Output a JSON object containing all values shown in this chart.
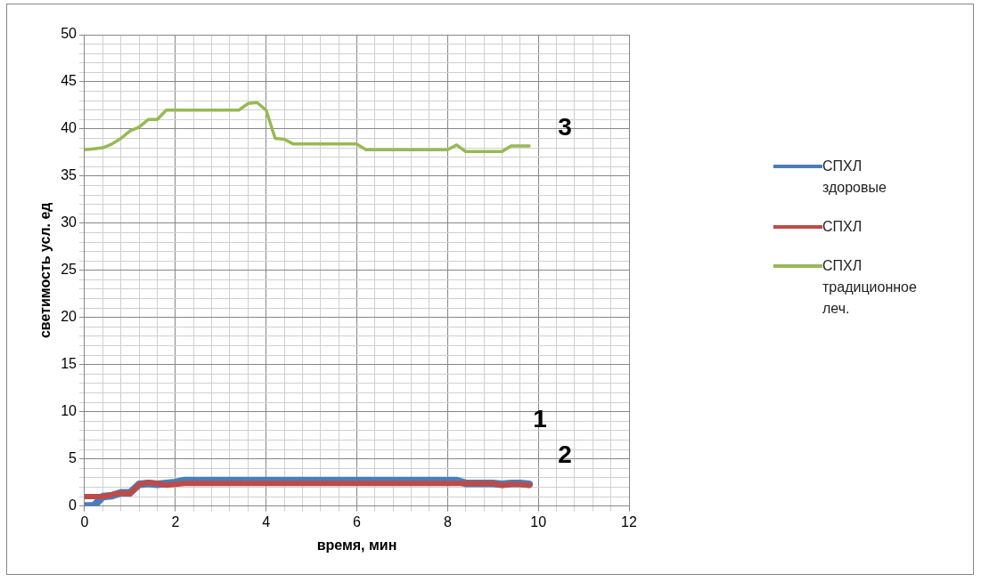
{
  "chart_data": {
    "type": "line",
    "xlabel": "время, мин",
    "ylabel": "светимость усл. ед",
    "legend": "right",
    "grid": true,
    "marker": "none",
    "x": [
      0,
      0.2,
      0.4,
      0.6,
      0.8,
      1,
      1.2,
      1.4,
      1.6,
      1.8,
      2,
      2.2,
      2.4,
      2.6,
      2.8,
      3,
      3.2,
      3.4,
      3.6,
      3.8,
      4,
      4.2,
      4.4,
      4.6,
      4.8,
      5,
      5.2,
      5.4,
      5.6,
      5.8,
      6,
      6.2,
      6.4,
      6.6,
      6.8,
      7,
      7.2,
      7.4,
      7.6,
      7.8,
      8,
      8.2,
      8.4,
      8.6,
      8.8,
      9,
      9.2,
      9.4,
      9.6,
      9.8
    ],
    "series": [
      {
        "name": "СПХЛ здоровые",
        "color": "#4a7ebb",
        "values": [
          0,
          0,
          1,
          1.1,
          1.4,
          1.4,
          2.3,
          2.4,
          2.3,
          2.4,
          2.5,
          2.7,
          2.7,
          2.7,
          2.7,
          2.7,
          2.7,
          2.7,
          2.7,
          2.7,
          2.7,
          2.7,
          2.7,
          2.7,
          2.7,
          2.7,
          2.7,
          2.7,
          2.7,
          2.7,
          2.7,
          2.7,
          2.7,
          2.7,
          2.7,
          2.7,
          2.7,
          2.7,
          2.7,
          2.7,
          2.7,
          2.7,
          2.4,
          2.4,
          2.4,
          2.4,
          2.3,
          2.4,
          2.4,
          2.3
        ]
      },
      {
        "name": "СПХЛ",
        "color": "#be4b48",
        "values": [
          1,
          1,
          1,
          1.2,
          1.4,
          1.3,
          2.3,
          2.5,
          2.4,
          2.2,
          2.3,
          2.4,
          2.4,
          2.4,
          2.4,
          2.4,
          2.4,
          2.4,
          2.4,
          2.4,
          2.4,
          2.4,
          2.4,
          2.4,
          2.4,
          2.4,
          2.4,
          2.4,
          2.4,
          2.4,
          2.4,
          2.4,
          2.4,
          2.4,
          2.4,
          2.4,
          2.4,
          2.4,
          2.4,
          2.4,
          2.4,
          2.4,
          2.4,
          2.4,
          2.4,
          2.4,
          2.2,
          2.3,
          2.3,
          2.2
        ]
      },
      {
        "name": "СПХЛ традиционное леч.",
        "color": "#98b954",
        "values": [
          37.8,
          37.9,
          38,
          38.4,
          39,
          39.8,
          40.2,
          41,
          41,
          42,
          42,
          42,
          42,
          42,
          42,
          42,
          42,
          42,
          42.7,
          42.8,
          42,
          39,
          38.9,
          38.4,
          38.4,
          38.4,
          38.4,
          38.4,
          38.4,
          38.4,
          38.4,
          37.8,
          37.8,
          37.8,
          37.8,
          37.8,
          37.8,
          37.8,
          37.8,
          37.8,
          37.8,
          38.3,
          37.6,
          37.6,
          37.6,
          37.6,
          37.6,
          38.2,
          38.2,
          38.2
        ]
      }
    ],
    "xlim": [
      0,
      12
    ],
    "xticks": [
      0,
      {
        "value": 0.4,
        "label": null
      },
      {
        "value": 0.8,
        "label": null
      },
      {
        "value": 1.2,
        "label": null
      },
      {
        "value": 1.6,
        "label": null
      },
      2,
      {
        "value": 2.4,
        "label": null
      },
      {
        "value": 2.8,
        "label": null
      },
      {
        "value": 3.2,
        "label": null
      },
      {
        "value": 3.6,
        "label": null
      },
      4,
      {
        "value": 4.4,
        "label": null
      },
      {
        "value": 4.8,
        "label": null
      },
      {
        "value": 5.2,
        "label": null
      },
      {
        "value": 5.6,
        "label": null
      },
      6,
      {
        "value": 6.4,
        "label": null
      },
      {
        "value": 6.8,
        "label": null
      },
      {
        "value": 7.2,
        "label": null
      },
      {
        "value": 7.6,
        "label": null
      },
      8,
      {
        "value": 8.4,
        "label": null
      },
      {
        "value": 8.8,
        "label": null
      },
      {
        "value": 9.2,
        "label": null
      },
      {
        "value": 9.6,
        "label": null
      },
      10,
      {
        "value": 10.4,
        "label": null
      },
      {
        "value": 10.8,
        "label": null
      },
      {
        "value": 11.2,
        "label": null
      },
      {
        "value": 11.6,
        "label": null
      },
      12
    ],
    "ylim": [
      0,
      50
    ],
    "yticks": [
      0,
      {
        "value": 1,
        "label": null
      },
      {
        "value": 2,
        "label": null
      },
      {
        "value": 3,
        "label": null
      },
      {
        "value": 4,
        "label": null
      },
      5,
      {
        "value": 6,
        "label": null
      },
      {
        "value": 7,
        "label": null
      },
      {
        "value": 8,
        "label": null
      },
      {
        "value": 9,
        "label": null
      },
      10,
      {
        "value": 11,
        "label": null
      },
      {
        "value": 12,
        "label": null
      },
      {
        "value": 13,
        "label": null
      },
      {
        "value": 14,
        "label": null
      },
      15,
      {
        "value": 16,
        "label": null
      },
      {
        "value": 17,
        "label": null
      },
      {
        "value": 18,
        "label": null
      },
      {
        "value": 19,
        "label": null
      },
      20,
      {
        "value": 21,
        "label": null
      },
      {
        "value": 22,
        "label": null
      },
      {
        "value": 23,
        "label": null
      },
      {
        "value": 24,
        "label": null
      },
      25,
      {
        "value": 26,
        "label": null
      },
      {
        "value": 27,
        "label": null
      },
      {
        "value": 28,
        "label": null
      },
      {
        "value": 29,
        "label": null
      },
      30,
      {
        "value": 31,
        "label": null
      },
      {
        "value": 32,
        "label": null
      },
      {
        "value": 33,
        "label": null
      },
      {
        "value": 34,
        "label": null
      },
      35,
      {
        "value": 36,
        "label": null
      },
      {
        "value": 37,
        "label": null
      },
      {
        "value": 38,
        "label": null
      },
      {
        "value": 39,
        "label": null
      },
      40,
      {
        "value": 41,
        "label": null
      },
      {
        "value": 42,
        "label": null
      },
      {
        "value": 43,
        "label": null
      },
      {
        "value": 44,
        "label": null
      },
      45,
      {
        "value": 46,
        "label": null
      },
      {
        "value": 47,
        "label": null
      },
      {
        "value": 48,
        "label": null
      },
      {
        "value": 49,
        "label": null
      },
      50
    ],
    "annotations": [
      "1",
      "2",
      "3"
    ]
  }
}
